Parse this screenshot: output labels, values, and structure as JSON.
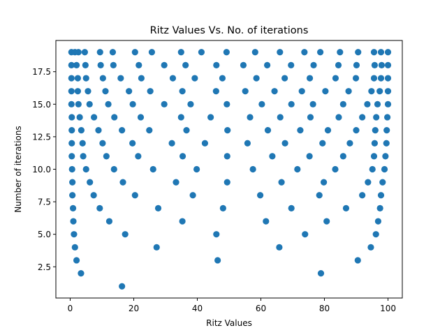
{
  "colors": {
    "marker": "#1f77b4",
    "axis": "#000000",
    "background": "#ffffff"
  },
  "chart_data": {
    "type": "scatter",
    "title": "Ritz Values Vs. No. of iterations",
    "xlabel": "Ritz Values",
    "ylabel": "Number of iterations",
    "xlim": [
      -4.5,
      104.5
    ],
    "ylim": [
      0.1,
      19.9
    ],
    "xticks": [
      {
        "v": 0,
        "label": "0"
      },
      {
        "v": 20,
        "label": "20"
      },
      {
        "v": 40,
        "label": "40"
      },
      {
        "v": 60,
        "label": "60"
      },
      {
        "v": 80,
        "label": "80"
      },
      {
        "v": 100,
        "label": "100"
      }
    ],
    "yticks": [
      {
        "v": 2.5,
        "label": "2.5"
      },
      {
        "v": 5,
        "label": "5.0"
      },
      {
        "v": 7.5,
        "label": "7.5"
      },
      {
        "v": 10,
        "label": "10.0"
      },
      {
        "v": 12.5,
        "label": "12.5"
      },
      {
        "v": 15,
        "label": "15.0"
      },
      {
        "v": 17.5,
        "label": "17.5"
      }
    ],
    "grid": false,
    "series": [
      {
        "rows": [
          {
            "y": 1,
            "x": [
              16.3
            ]
          },
          {
            "y": 2,
            "x": [
              3.4,
              78.9
            ]
          },
          {
            "y": 3,
            "x": [
              2.0,
              46.4,
              90.5
            ]
          },
          {
            "y": 4,
            "x": [
              1.5,
              27.2,
              65.8,
              94.6
            ]
          },
          {
            "y": 5,
            "x": [
              1.2,
              17.3,
              46.0,
              73.9,
              96.2
            ]
          },
          {
            "y": 6,
            "x": [
              1.0,
              12.3,
              35.3,
              61.6,
              80.7,
              96.9
            ]
          },
          {
            "y": 7,
            "x": [
              0.9,
              9.3,
              27.7,
              48.1,
              69.6,
              86.8,
              97.5
            ]
          },
          {
            "y": 8,
            "x": [
              0.7,
              7.4,
              20.4,
              38.6,
              59.8,
              78.4,
              91.9,
              97.8
            ]
          },
          {
            "y": 9,
            "x": [
              0.7,
              6.2,
              16.6,
              33.3,
              49.4,
              66.5,
              79.8,
              93.7,
              98.3
            ]
          },
          {
            "y": 10,
            "x": [
              0.6,
              5.0,
              13.8,
              26.1,
              39.8,
              57.5,
              71.5,
              83.4,
              95.1,
              98.9
            ]
          },
          {
            "y": 11,
            "x": [
              0.5,
              4.1,
              11.4,
              21.4,
              35.4,
              49.4,
              63.6,
              75.3,
              85.9,
              95.6,
              99.2
            ]
          },
          {
            "y": 12,
            "x": [
              0.5,
              3.9,
              10.2,
              19.6,
              32.0,
              42.4,
              55.8,
              67.6,
              79.4,
              88.0,
              95.8,
              99.5
            ]
          },
          {
            "y": 13,
            "x": [
              0.5,
              3.5,
              8.9,
              16.3,
              24.9,
              36.6,
              49.5,
              62.2,
              72.4,
              81.1,
              90.0,
              96.0,
              99.6
            ]
          },
          {
            "y": 14,
            "x": [
              0.5,
              3.0,
              7.5,
              13.9,
              22.2,
              34.9,
              44.2,
              56.6,
              66.1,
              75.6,
              84.5,
              91.9,
              96.3,
              99.8
            ]
          },
          {
            "y": 15,
            "x": [
              0.4,
              2.6,
              6.1,
              12.0,
              19.7,
              29.6,
              37.9,
              49.3,
              60.3,
              69.6,
              76.4,
              85.9,
              93.5,
              96.7,
              100.0
            ]
          },
          {
            "y": 16,
            "x": [
              0.4,
              2.4,
              5.6,
              11.1,
              18.5,
              25.2,
              35.3,
              45.9,
              55.1,
              64.3,
              72.9,
              80.3,
              87.6,
              94.8,
              97.4,
              100.0
            ]
          },
          {
            "y": 17,
            "x": [
              0.4,
              2.4,
              5.0,
              10.3,
              15.9,
              22.4,
              32.3,
              39.2,
              47.9,
              58.6,
              67.5,
              75.4,
              83.5,
              89.9,
              95.6,
              97.8,
              100.0
            ]
          },
          {
            "y": 18,
            "x": [
              0.4,
              2.0,
              4.8,
              9.6,
              13.6,
              21.6,
              29.6,
              36.3,
              46.0,
              54.5,
              62.0,
              69.5,
              76.6,
              84.4,
              90.1,
              95.8,
              98.0,
              100.0
            ]
          },
          {
            "y": 19,
            "x": [
              0.4,
              1.5,
              2.6,
              4.6,
              9.4,
              13.4,
              20.4,
              25.7,
              34.9,
              41.3,
              49.2,
              58.2,
              66.0,
              73.7,
              78.7,
              84.9,
              90.6,
              95.6,
              97.8,
              100.0
            ]
          }
        ]
      }
    ]
  }
}
